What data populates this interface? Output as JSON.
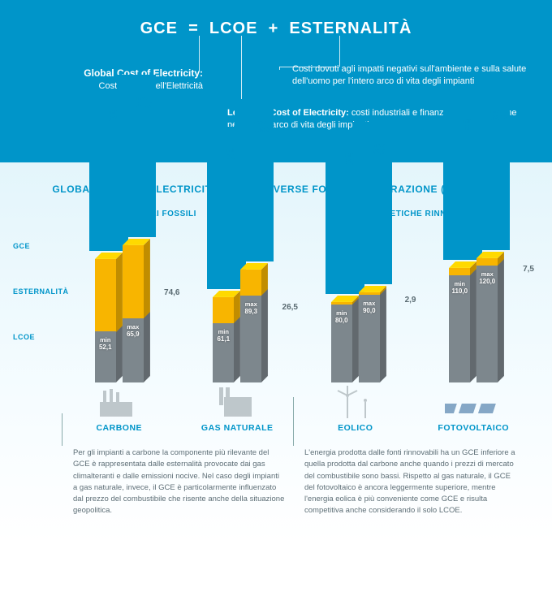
{
  "colors": {
    "bg_top": "#0095c9",
    "accent": "#0095c9",
    "lcoe_bar": "#7d878d",
    "ext_bar": "#f8b500",
    "text_muted": "#5d6e76"
  },
  "equation": {
    "gce": "GCE",
    "eq": "=",
    "lcoe": "LCOE",
    "plus": "+",
    "est": "ESTERNALITÀ"
  },
  "block_gce": {
    "title": "Global Cost of Electricity:",
    "sub": "Costo Totale dell'Elettricità"
  },
  "block_est": "Costi dovuti agli impatti negativi sull'ambiente e sulla salute dell'uomo per l'intero arco di vita degli impianti",
  "block_lcoe": {
    "title": "Levelized Cost of Electricity:",
    "rest": "costi industriali e finanziari di generazione per l'intero arco di vita degli impianti"
  },
  "section_title": "GLOBAL COST OF ELECTRICITY PER LE DIVERSE FONTI DI GENERAZIONE (IN €/MWh):",
  "sub_left": "COMBUSTIBILI FOSSILI",
  "sub_right": "FONTI ENERGETICHE RINNOVABILI",
  "row_labels": {
    "gce": "GCE",
    "ext": "ESTERNALITÀ",
    "lcoe": "LCOE"
  },
  "chart": {
    "ymax": 150,
    "sources": [
      {
        "name": "CARBONE",
        "icon": "coal",
        "min": {
          "lcoe": 52.1,
          "gce": 126.7
        },
        "max": {
          "lcoe": 65.9,
          "gce": 140.5
        },
        "ext": 74.6
      },
      {
        "name": "GAS NATURALE",
        "icon": "gas",
        "min": {
          "lcoe": 61.1,
          "gce": 87.6
        },
        "max": {
          "lcoe": 89.3,
          "gce": 115.8
        },
        "ext": 26.5
      },
      {
        "name": "EOLICO",
        "icon": "wind",
        "min": {
          "lcoe": 80.0,
          "gce": 82.9
        },
        "max": {
          "lcoe": 90.0,
          "gce": 92.9
        },
        "ext": 2.9
      },
      {
        "name": "FOTOVOLTAICO",
        "icon": "solar",
        "min": {
          "lcoe": 110.0,
          "gce": 117.5
        },
        "max": {
          "lcoe": 120.0,
          "gce": 127.5
        },
        "ext": 7.5
      }
    ]
  },
  "note_fossil": "Per gli impianti a carbone la componente più rilevante del GCE è rappresentata dalle esternalità provocate dai gas climalteranti e dalle emissioni nocive. Nel caso degli impianti a gas naturale, invece, il GCE è particolarmente influenzato dal prezzo del combustibile che risente anche della situazione geopolitica.",
  "note_renew": "L'energia prodotta dalle fonti rinnovabili ha un GCE inferiore a quella prodotta dal carbone anche quando i prezzi di mercato del combustibile sono bassi. Rispetto al gas naturale, il GCE del fotovoltaico è ancora leggermente superiore, mentre l'energia eolica è più conveniente come GCE e risulta competitiva anche considerando il solo LCOE."
}
